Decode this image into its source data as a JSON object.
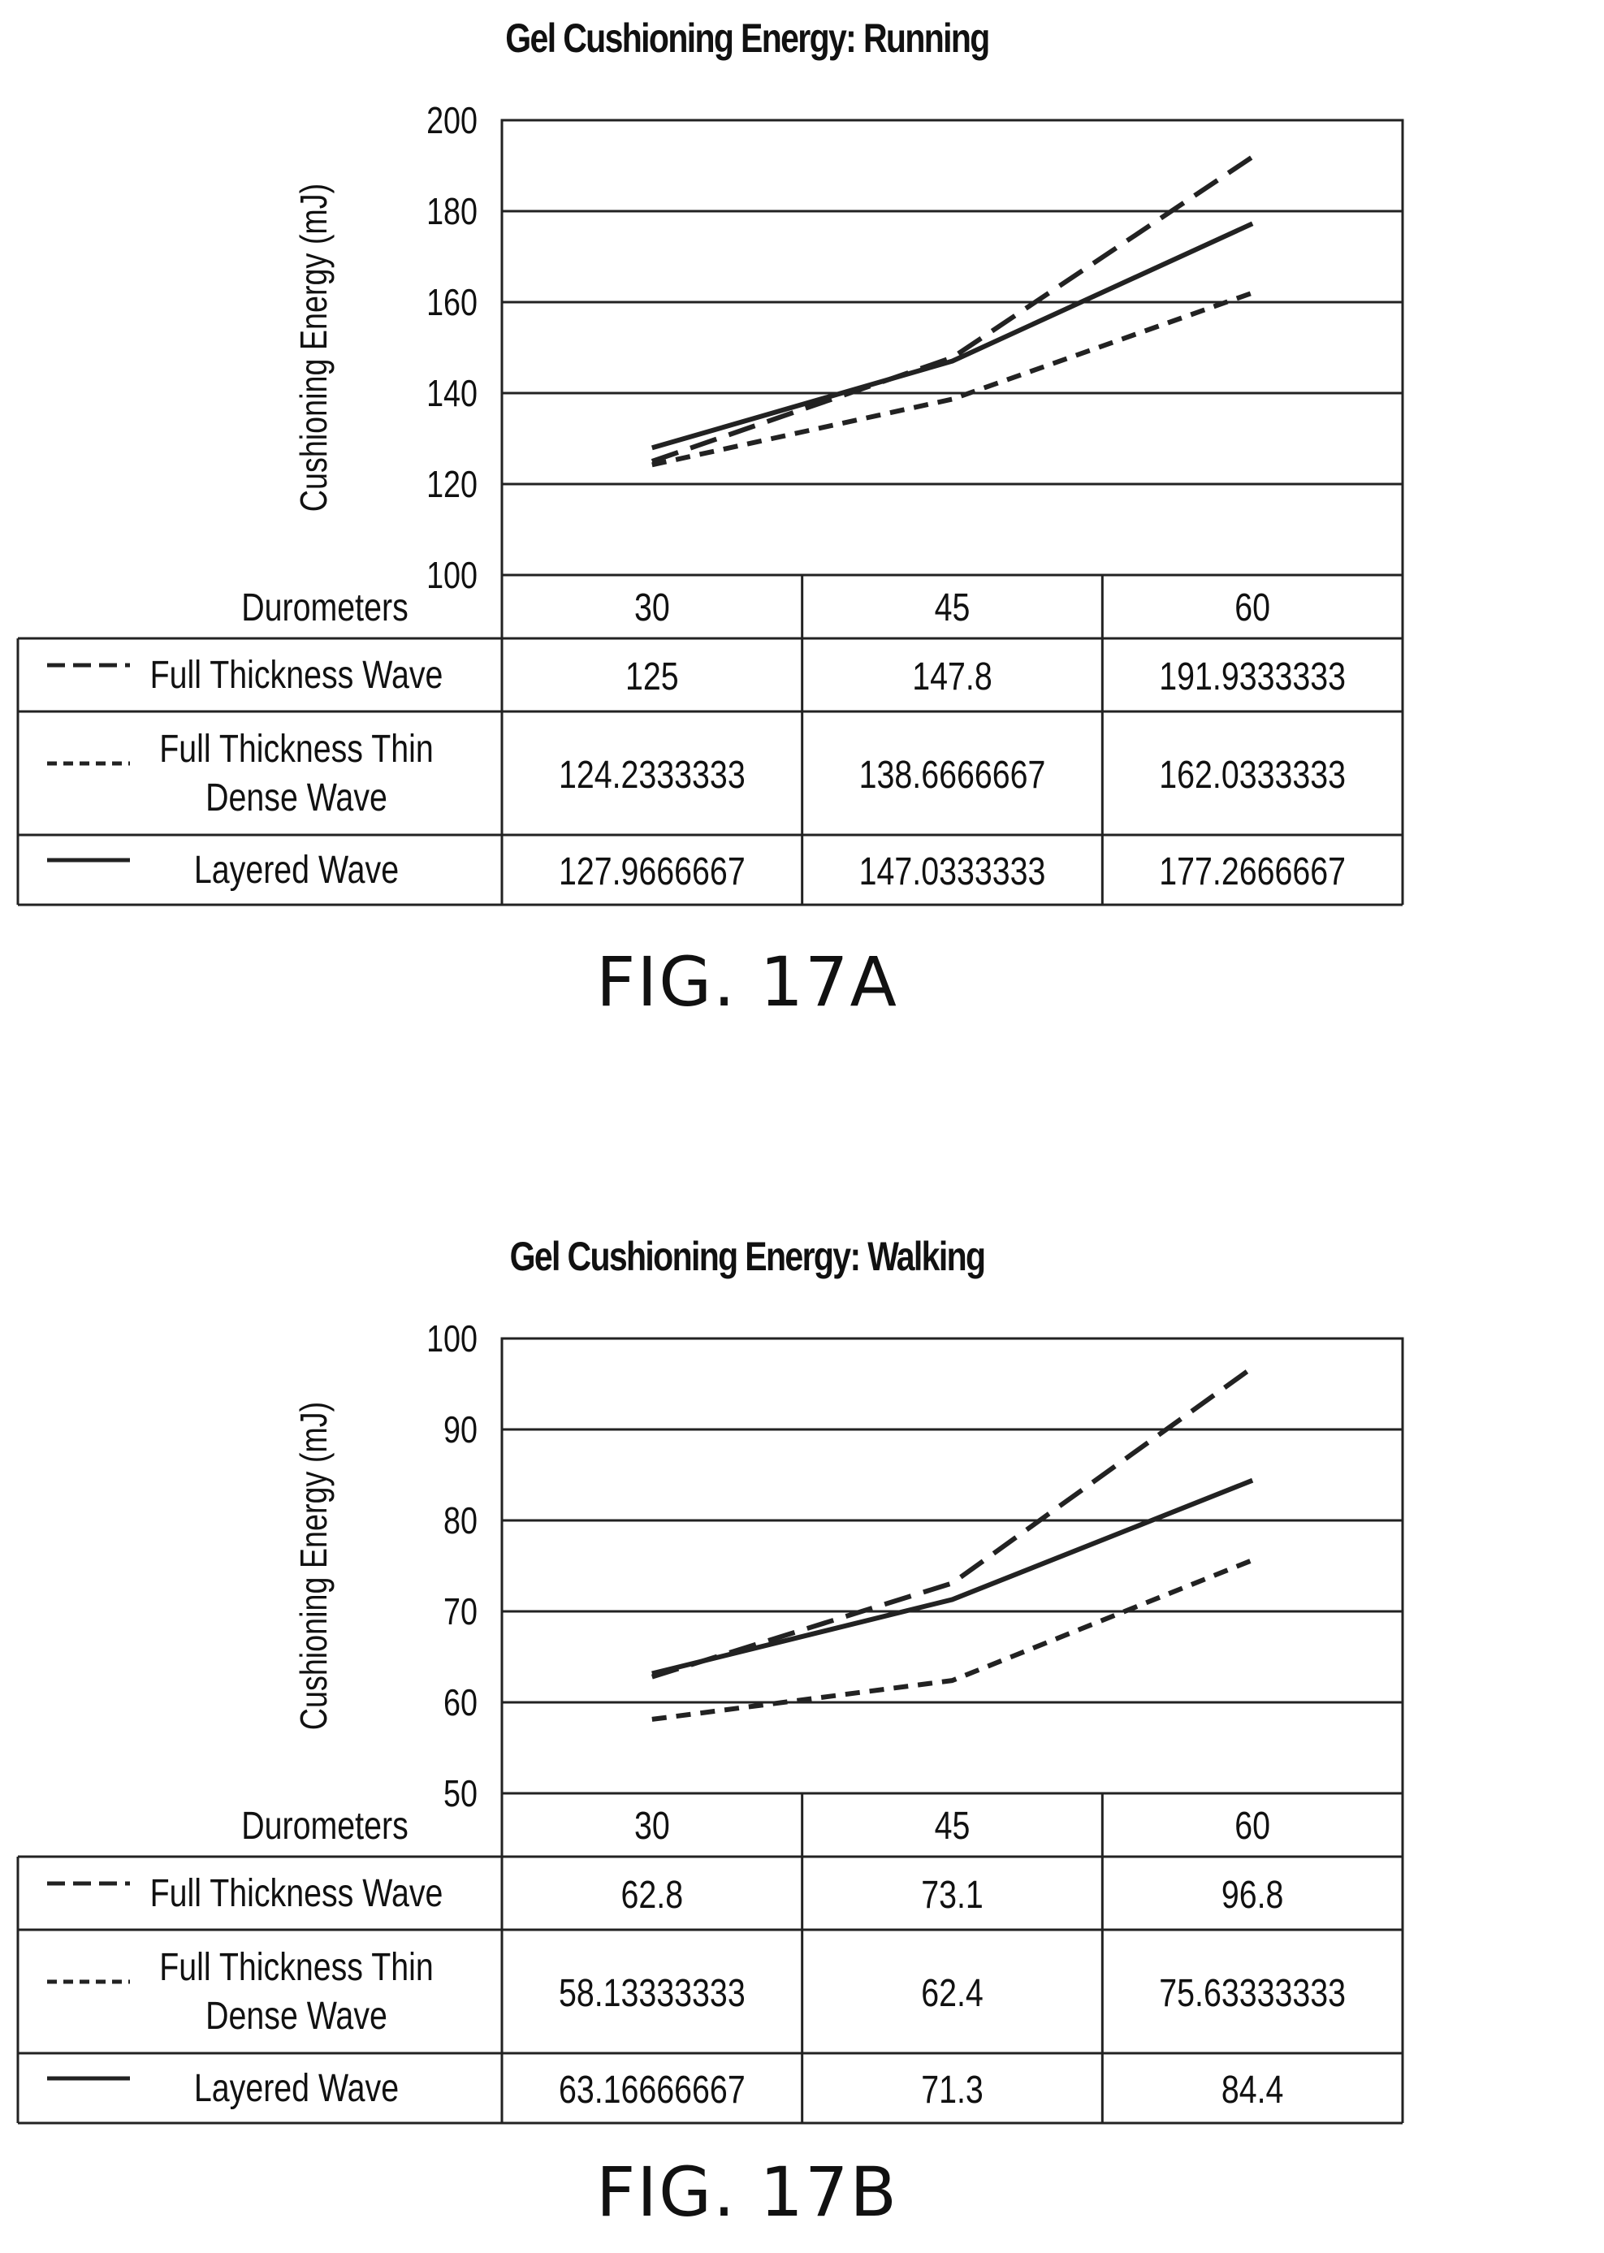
{
  "chart_data": [
    {
      "type": "line",
      "title": "Gel Cushioning Energy: Running",
      "ylabel": "Cushioning Energy (mJ)",
      "xlabel": "Durometers",
      "categories": [
        "30",
        "45",
        "60"
      ],
      "yticks": [
        "100",
        "120",
        "140",
        "160",
        "180",
        "200"
      ],
      "ylim": [
        100,
        200
      ],
      "grid": true,
      "legend": "data-table-below",
      "series": [
        {
          "name": "Full Thickness Wave",
          "name_lines": [
            "Full Thickness Wave"
          ],
          "style": "long-dash",
          "values": [
            125,
            147.8,
            191.9333333
          ],
          "labels": [
            "125",
            "147.8",
            "191.9333333"
          ]
        },
        {
          "name": "Full Thickness Thin Dense Wave",
          "name_lines": [
            "Full Thickness Thin",
            "Dense Wave"
          ],
          "style": "short-dash",
          "values": [
            124.2333333,
            138.6666667,
            162.0333333
          ],
          "labels": [
            "124.2333333",
            "138.6666667",
            "162.0333333"
          ]
        },
        {
          "name": "Layered Wave",
          "name_lines": [
            "Layered Wave"
          ],
          "style": "solid",
          "values": [
            127.9666667,
            147.0333333,
            177.2666667
          ],
          "labels": [
            "127.9666667",
            "147.0333333",
            "177.2666667"
          ]
        }
      ],
      "figure_label": "FIG. 17A"
    },
    {
      "type": "line",
      "title": "Gel Cushioning Energy: Walking",
      "ylabel": "Cushioning Energy (mJ)",
      "xlabel": "Durometers",
      "categories": [
        "30",
        "45",
        "60"
      ],
      "yticks": [
        "50",
        "60",
        "70",
        "80",
        "90",
        "100"
      ],
      "ylim": [
        50,
        100
      ],
      "grid": true,
      "legend": "data-table-below",
      "series": [
        {
          "name": "Full Thickness Wave",
          "name_lines": [
            "Full Thickness Wave"
          ],
          "style": "long-dash",
          "values": [
            62.8,
            73.1,
            96.8
          ],
          "labels": [
            "62.8",
            "73.1",
            "96.8"
          ]
        },
        {
          "name": "Full Thickness Thin Dense Wave",
          "name_lines": [
            "Full Thickness Thin",
            "Dense Wave"
          ],
          "style": "short-dash",
          "values": [
            58.13333333,
            62.4,
            75.63333333
          ],
          "labels": [
            "58.13333333",
            "62.4",
            "75.63333333"
          ]
        },
        {
          "name": "Layered Wave",
          "name_lines": [
            "Layered Wave"
          ],
          "style": "solid",
          "values": [
            63.16666667,
            71.3,
            84.4
          ],
          "labels": [
            "63.16666667",
            "71.3",
            "84.4"
          ]
        }
      ],
      "figure_label": "FIG. 17B"
    }
  ]
}
